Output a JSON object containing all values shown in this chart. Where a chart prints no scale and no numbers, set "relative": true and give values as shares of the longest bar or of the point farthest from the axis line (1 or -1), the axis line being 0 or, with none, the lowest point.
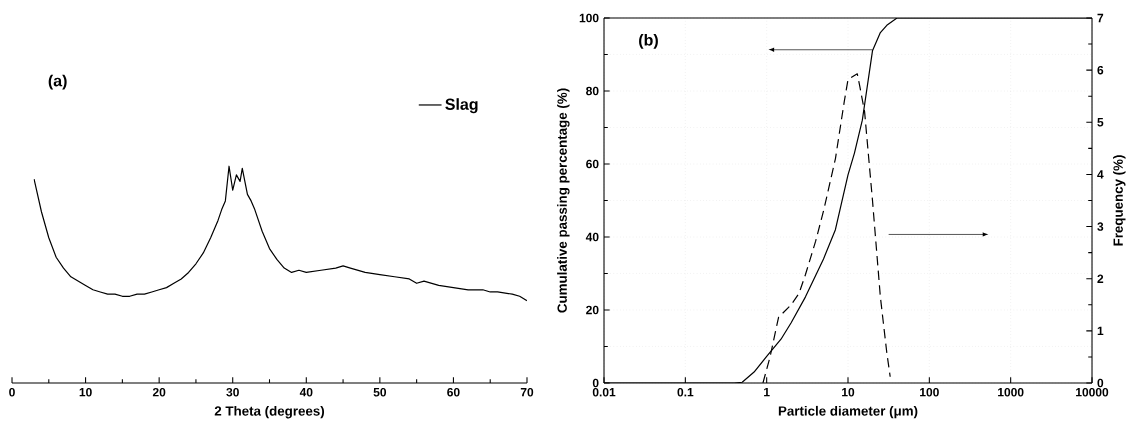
{
  "chart_data": [
    {
      "type": "line",
      "relative": true,
      "xlabel": "2 Theta (degrees)",
      "xlim": [
        0,
        70
      ],
      "xticks": [
        0,
        10,
        20,
        30,
        40,
        50,
        60,
        70
      ],
      "legend": "top right",
      "annotations": [
        "(a)"
      ],
      "series": [
        {
          "name": "Slag",
          "color": "#000000",
          "x": [
            3,
            4,
            5,
            6,
            7,
            8,
            9,
            10,
            11,
            12,
            13,
            14,
            15,
            16,
            17,
            18,
            19,
            20,
            21,
            22,
            23,
            24,
            25,
            26,
            27,
            28,
            28.5,
            29,
            29.5,
            30,
            30.5,
            31,
            31.3,
            32,
            32.5,
            33,
            34,
            35,
            36,
            37,
            38,
            39,
            40,
            42,
            44,
            45,
            46,
            48,
            50,
            52,
            54,
            55,
            56,
            58,
            60,
            62,
            64,
            65,
            66,
            68,
            69,
            70
          ],
          "values": [
            0.94,
            0.79,
            0.67,
            0.58,
            0.53,
            0.49,
            0.47,
            0.45,
            0.43,
            0.42,
            0.41,
            0.41,
            0.4,
            0.4,
            0.41,
            0.41,
            0.42,
            0.43,
            0.44,
            0.46,
            0.48,
            0.51,
            0.55,
            0.6,
            0.67,
            0.75,
            0.8,
            0.84,
            1.0,
            0.89,
            0.96,
            0.93,
            0.99,
            0.87,
            0.84,
            0.8,
            0.7,
            0.62,
            0.57,
            0.53,
            0.51,
            0.52,
            0.51,
            0.52,
            0.53,
            0.54,
            0.53,
            0.51,
            0.5,
            0.49,
            0.48,
            0.46,
            0.47,
            0.45,
            0.44,
            0.43,
            0.43,
            0.42,
            0.42,
            0.41,
            0.4,
            0.38
          ]
        }
      ]
    },
    {
      "type": "line",
      "xlabel": "Particle diameter (μm)",
      "ylabel": "Cumulative passing percentage (%)",
      "y2label": "Frequency (%)",
      "log": "x",
      "grid": true,
      "annotations": [
        "(b)"
      ],
      "xlim": [
        0.01,
        10000
      ],
      "xticks": [
        0.01,
        0.1,
        1,
        10,
        100,
        1000,
        10000
      ],
      "ylim": [
        0,
        100
      ],
      "yticks": [
        0,
        20,
        40,
        60,
        80,
        100
      ],
      "y2lim": [
        0,
        7
      ],
      "y2ticks": [
        0,
        1,
        2,
        3,
        4,
        5,
        6,
        7
      ],
      "series": [
        {
          "color": "#000000",
          "line_style": "solid",
          "x": [
            0.01,
            0.1,
            0.4,
            0.5,
            0.7,
            1,
            1.5,
            2,
            3,
            5,
            7,
            10,
            12,
            15,
            20,
            25,
            30,
            40,
            100,
            1000,
            10000
          ],
          "values": [
            0,
            0,
            0,
            0.2,
            3,
            7.3,
            12,
            16.5,
            23.6,
            34,
            42,
            57,
            63,
            72,
            91,
            96,
            98,
            100,
            100,
            100,
            100
          ]
        },
        {
          "color": "#000000",
          "line_style": "dashed",
          "axis": "y2",
          "x": [
            0.9,
            1.1,
            1.4,
            2,
            2.5,
            3,
            4,
            5,
            7,
            9,
            10,
            13,
            14,
            16,
            18,
            20,
            25,
            30,
            33
          ],
          "values": [
            0,
            0.5,
            1.26,
            1.5,
            1.72,
            2.08,
            2.72,
            3.3,
            4.3,
            5.4,
            5.82,
            5.93,
            5.68,
            5.2,
            4.3,
            3.5,
            1.65,
            0.58,
            0.12
          ]
        }
      ]
    }
  ]
}
